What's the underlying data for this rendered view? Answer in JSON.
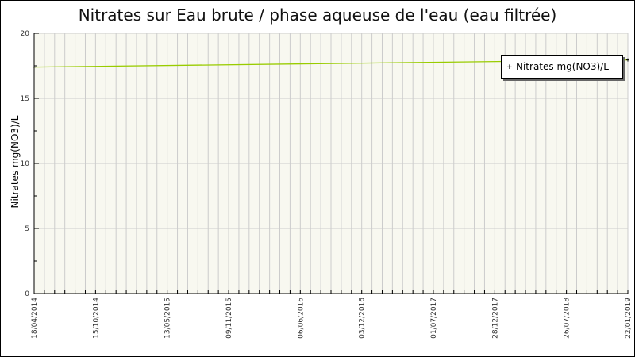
{
  "chart_data": {
    "type": "line",
    "title": "Nitrates sur Eau brute / phase aqueuse de l'eau (eau filtrée)",
    "ylabel": "Nitrates mg(NO3)/L",
    "xlabel": "",
    "ylim": [
      0,
      20
    ],
    "yticks": [
      "0",
      "5",
      "10",
      "15",
      "20"
    ],
    "xticks": [
      "18/04/2014",
      "15/10/2014",
      "13/05/2015",
      "09/11/2015",
      "06/06/2016",
      "03/12/2016",
      "01/07/2017",
      "28/12/2017",
      "26/07/2018",
      "22/01/2019"
    ],
    "grid": true,
    "legend_position": "top-right",
    "series": [
      {
        "name": "Nitrates mg(NO3)/L",
        "color": "#99cc00",
        "x": [
          "18/04/2014",
          "22/01/2019"
        ],
        "values": [
          17.4,
          17.95
        ]
      }
    ],
    "plot_background": "#f8f8f0"
  }
}
